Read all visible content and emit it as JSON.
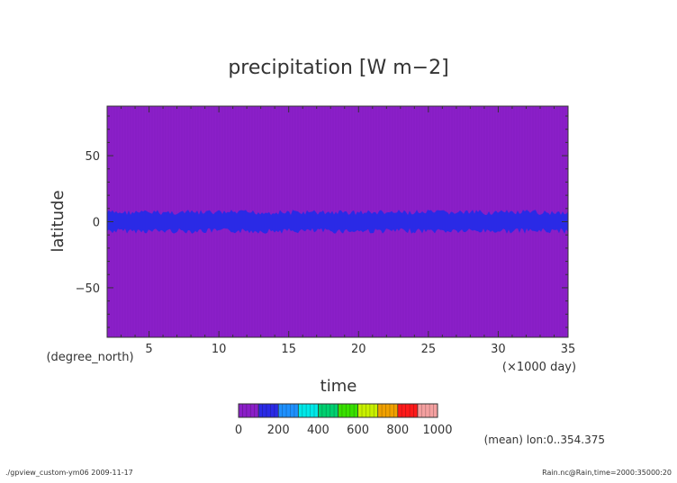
{
  "chart_data": {
    "type": "heatmap",
    "title": "precipitation [W m−2]",
    "xlabel": "time",
    "ylabel": "latitude",
    "x_unit": "(×1000 day)",
    "y_unit": "(degree_north)",
    "xlim": [
      2,
      35
    ],
    "ylim": [
      -87.5,
      87.5
    ],
    "x_ticks": [
      "5",
      "10",
      "15",
      "20",
      "25",
      "30",
      "35"
    ],
    "x_tick_values": [
      5,
      10,
      15,
      20,
      25,
      30,
      35
    ],
    "y_ticks": [
      "50",
      "0",
      "−50"
    ],
    "y_tick_values": [
      50,
      0,
      -50
    ],
    "background_value": 50,
    "band": {
      "lat_min": -7,
      "lat_max": 7,
      "value": 150
    },
    "colorbar": {
      "ticks": [
        "0",
        "200",
        "400",
        "600",
        "800",
        "1000"
      ],
      "tick_values": [
        0,
        200,
        400,
        600,
        800,
        1000
      ],
      "levels": [
        0,
        100,
        200,
        300,
        400,
        500,
        600,
        700,
        800,
        900,
        1000
      ],
      "colors": [
        "#8b1fc8",
        "#2a2ae6",
        "#1e90ff",
        "#00e8e8",
        "#00d070",
        "#38e000",
        "#c8f000",
        "#f0a000",
        "#ff1a1a",
        "#f4a0a0"
      ]
    },
    "note": "(mean) lon:0..354.375",
    "grid": false
  },
  "footer": {
    "left": "./gpview_custom-ym06   2009-11-17",
    "right": "Rain.nc@Rain,time=2000:35000:20"
  }
}
